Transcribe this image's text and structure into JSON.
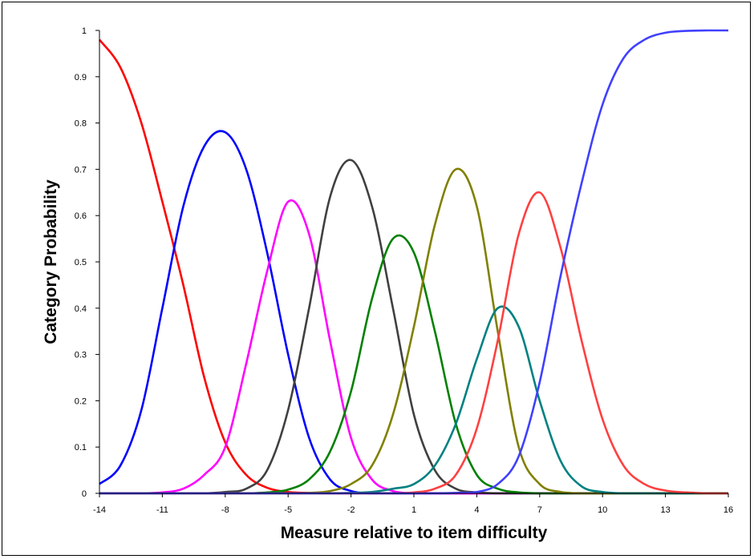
{
  "chart_data": {
    "type": "line",
    "title": "",
    "xlabel": "Measure relative to item difficulty",
    "ylabel": "Category Probability",
    "xlim": [
      -14,
      16
    ],
    "ylim": [
      0,
      1
    ],
    "x_ticks": [
      -14,
      -11,
      -8,
      -5,
      -2,
      1,
      4,
      7,
      10,
      13,
      16
    ],
    "y_ticks": [
      0,
      0.1,
      0.2,
      0.3,
      0.4,
      0.5,
      0.6,
      0.7,
      0.8,
      0.9,
      1
    ],
    "x_tick_labels": [
      "-14",
      "-11",
      "-8",
      "-5",
      "-2",
      "1",
      "4",
      "7",
      "10",
      "13",
      "16"
    ],
    "y_tick_labels": [
      "0",
      "0.1",
      "0.2",
      "0.3",
      "0.4",
      "0.5",
      "0.6",
      "0.7",
      "0.8",
      "0.9",
      "1"
    ],
    "grid": false,
    "legend": "none",
    "x": [
      -14,
      -13,
      -12,
      -11,
      -10,
      -9,
      -8,
      -7,
      -6,
      -5,
      -4,
      -3,
      -2,
      -1,
      0,
      1,
      2,
      3,
      4,
      5,
      6,
      7,
      8,
      9,
      10,
      11,
      12,
      13,
      14,
      15,
      16
    ],
    "series": [
      {
        "color": "#ff0000",
        "values": [
          0.98,
          0.92,
          0.8,
          0.63,
          0.45,
          0.25,
          0.11,
          0.04,
          0.012,
          0.003,
          0.001,
          0,
          0,
          0,
          0,
          0,
          0,
          0,
          0,
          0,
          0,
          0,
          0,
          0,
          0,
          0,
          0,
          0,
          0,
          0,
          0
        ]
      },
      {
        "color": "#0000ff",
        "values": [
          0.02,
          0.06,
          0.18,
          0.4,
          0.62,
          0.75,
          0.78,
          0.7,
          0.52,
          0.3,
          0.12,
          0.03,
          0.005,
          0,
          0,
          0,
          0,
          0,
          0,
          0,
          0,
          0,
          0,
          0,
          0,
          0,
          0,
          0,
          0,
          0,
          0
        ]
      },
      {
        "color": "#ff00ff",
        "values": [
          0,
          0,
          0,
          0.002,
          0.01,
          0.04,
          0.1,
          0.28,
          0.48,
          0.63,
          0.56,
          0.33,
          0.12,
          0.03,
          0.005,
          0,
          0,
          0,
          0,
          0,
          0,
          0,
          0,
          0,
          0,
          0,
          0,
          0,
          0,
          0,
          0
        ]
      },
      {
        "color": "#404040",
        "values": [
          0,
          0,
          0,
          0,
          0,
          0,
          0.003,
          0.01,
          0.05,
          0.18,
          0.4,
          0.64,
          0.72,
          0.62,
          0.4,
          0.17,
          0.05,
          0.01,
          0.002,
          0,
          0,
          0,
          0,
          0,
          0,
          0,
          0,
          0,
          0,
          0,
          0
        ]
      },
      {
        "color": "#008000",
        "values": [
          0,
          0,
          0,
          0,
          0,
          0,
          0,
          0,
          0.002,
          0.008,
          0.03,
          0.09,
          0.22,
          0.42,
          0.55,
          0.52,
          0.35,
          0.15,
          0.04,
          0.01,
          0.002,
          0,
          0,
          0,
          0,
          0,
          0,
          0,
          0,
          0,
          0
        ]
      },
      {
        "color": "#808000",
        "values": [
          0,
          0,
          0,
          0,
          0,
          0,
          0,
          0,
          0,
          0,
          0.001,
          0.005,
          0.02,
          0.06,
          0.17,
          0.36,
          0.58,
          0.7,
          0.62,
          0.35,
          0.1,
          0.02,
          0.003,
          0,
          0,
          0,
          0,
          0,
          0,
          0,
          0
        ]
      },
      {
        "color": "#008080",
        "values": [
          0,
          0,
          0,
          0,
          0,
          0,
          0,
          0,
          0,
          0,
          0,
          0,
          0.001,
          0.003,
          0.01,
          0.02,
          0.06,
          0.15,
          0.29,
          0.4,
          0.36,
          0.2,
          0.07,
          0.015,
          0.003,
          0,
          0,
          0,
          0,
          0,
          0
        ]
      },
      {
        "color": "#ff4040",
        "values": [
          0,
          0,
          0,
          0,
          0,
          0,
          0,
          0,
          0,
          0,
          0,
          0,
          0,
          0,
          0,
          0.002,
          0.01,
          0.04,
          0.14,
          0.33,
          0.56,
          0.65,
          0.53,
          0.33,
          0.16,
          0.06,
          0.02,
          0.006,
          0.002,
          0,
          0
        ]
      },
      {
        "color": "#4040ff",
        "values": [
          0,
          0,
          0,
          0,
          0,
          0,
          0,
          0,
          0,
          0,
          0,
          0,
          0,
          0,
          0,
          0,
          0,
          0.001,
          0.003,
          0.02,
          0.08,
          0.24,
          0.47,
          0.67,
          0.84,
          0.94,
          0.98,
          0.995,
          0.999,
          1,
          1
        ]
      }
    ]
  }
}
